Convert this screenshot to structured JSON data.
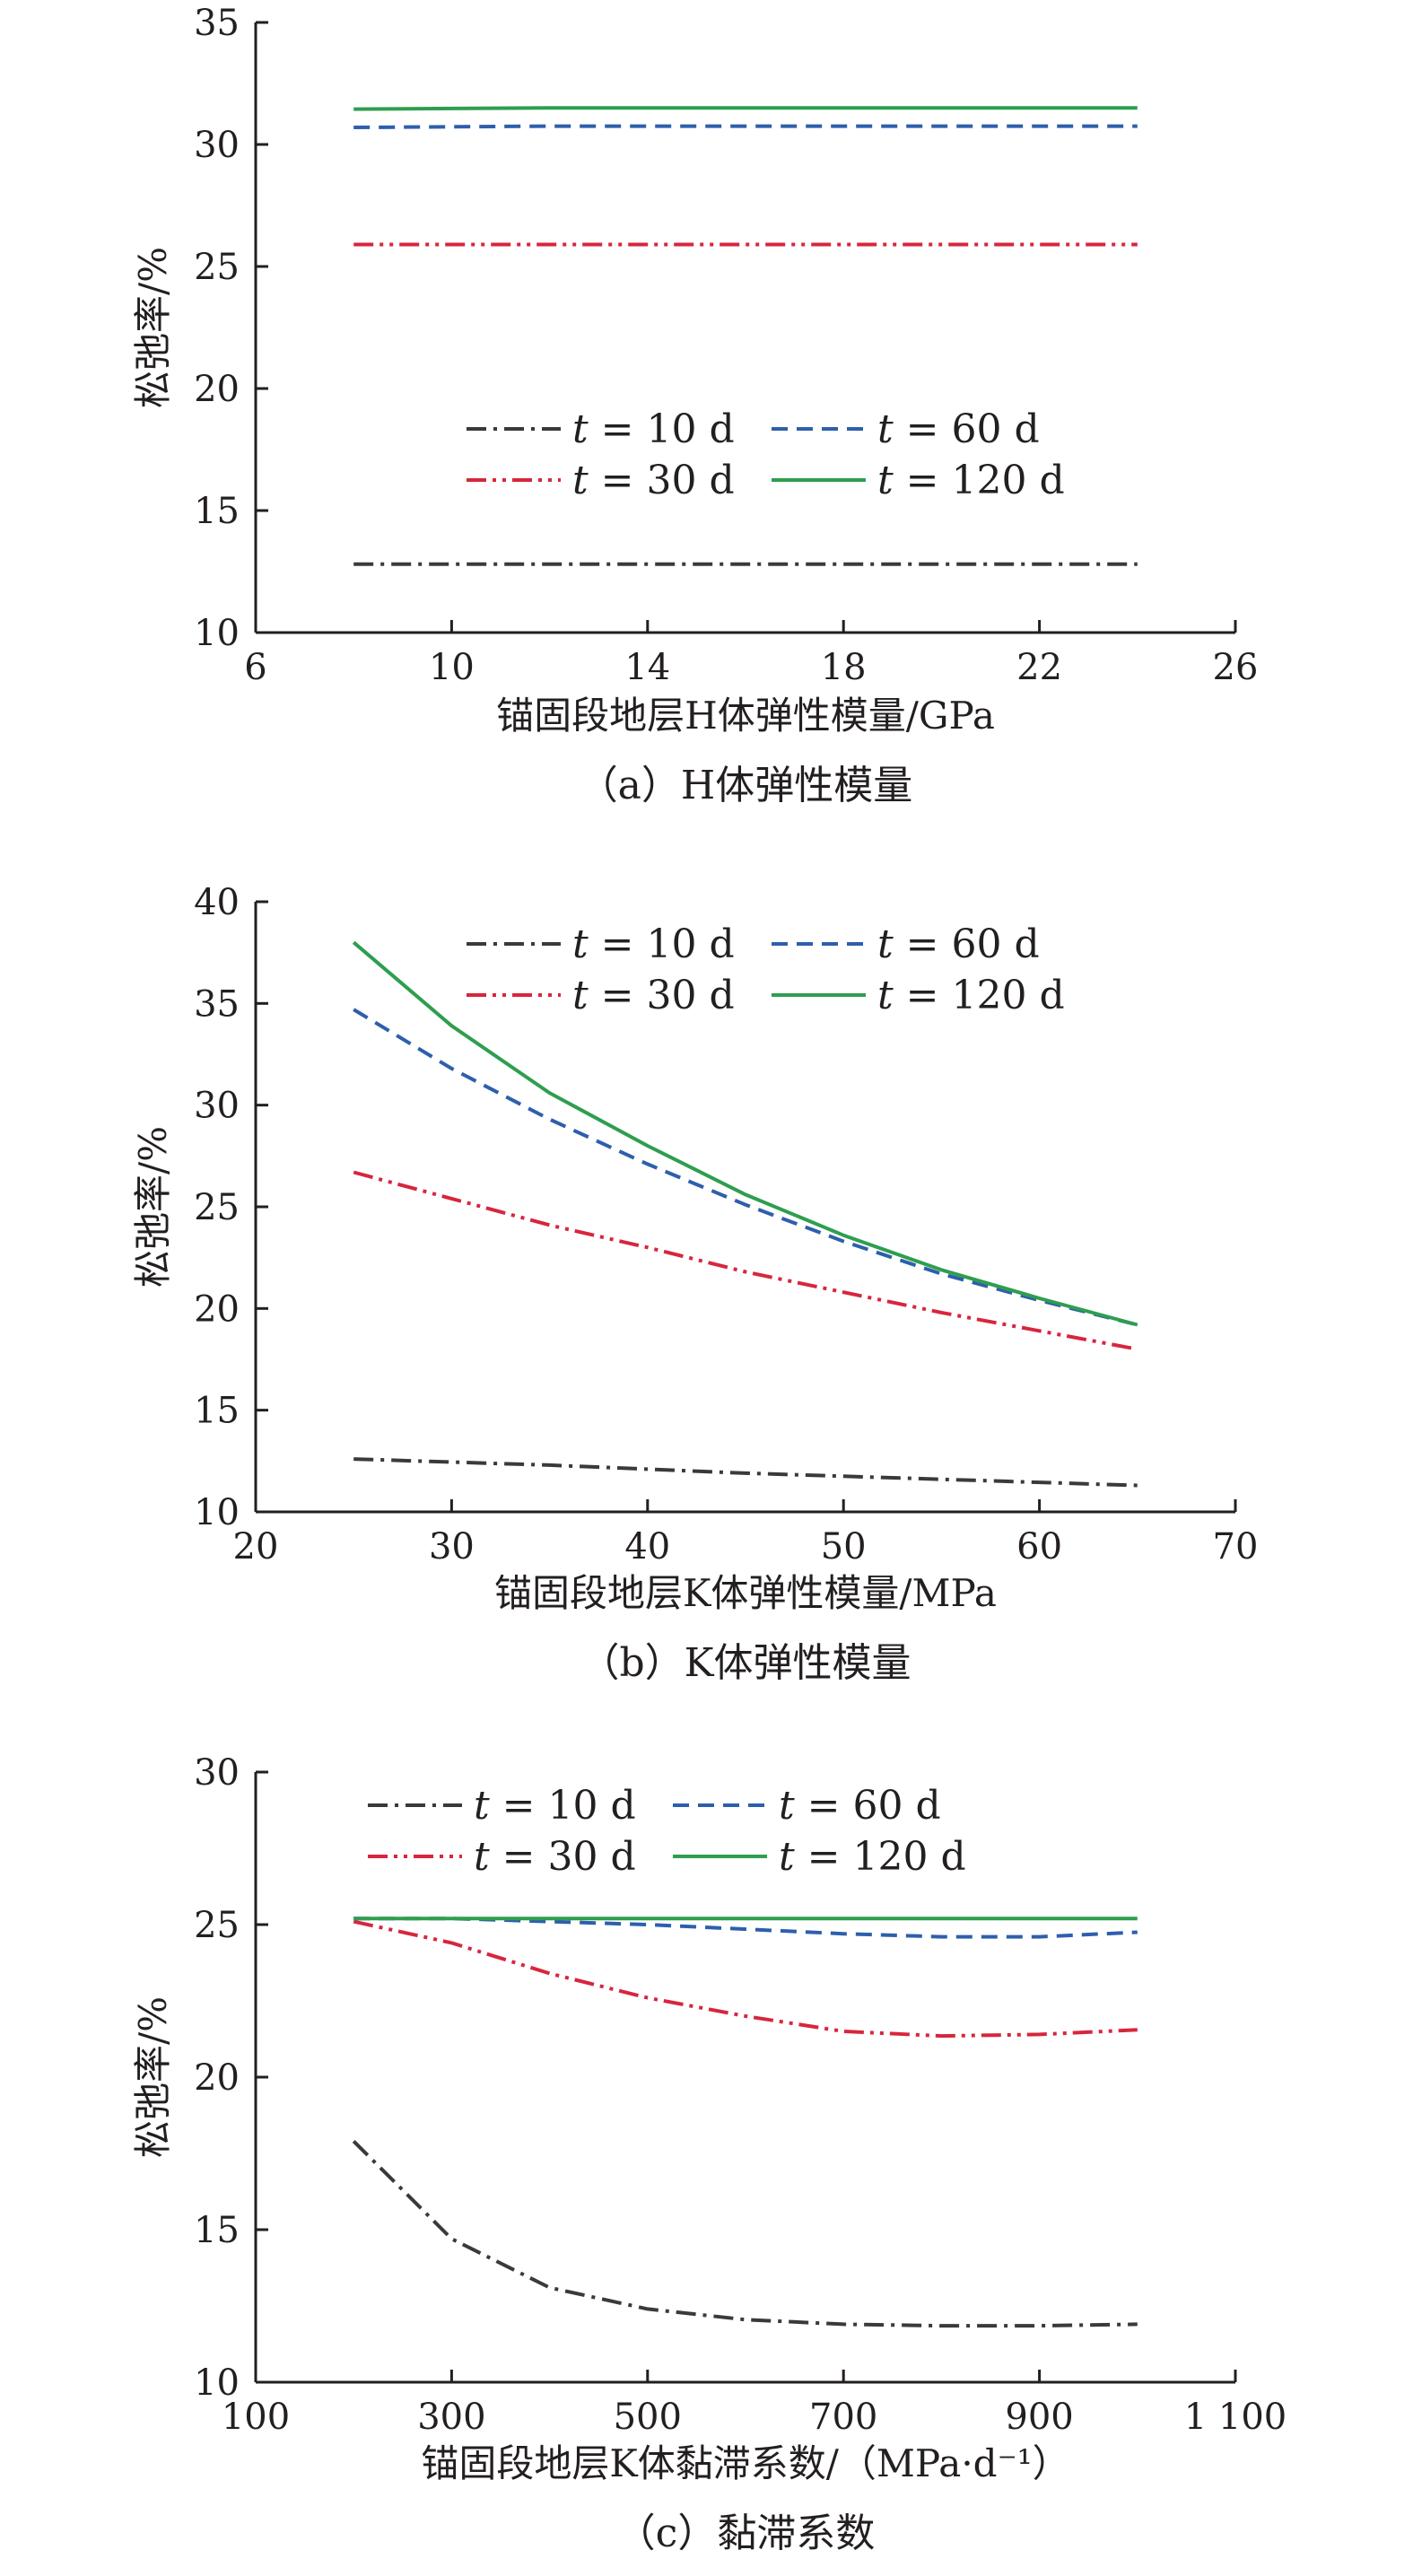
{
  "chart_data": [
    {
      "type": "line",
      "ylabel": "松弛率/%",
      "xlabel": "锚固段地层H体弹性模量/GPa",
      "caption": "（a）H体弹性模量",
      "xlim": [
        6,
        26
      ],
      "ylim": [
        10,
        35
      ],
      "xticks": [
        6,
        10,
        14,
        18,
        22,
        26
      ],
      "yticks": [
        10,
        15,
        20,
        25,
        30,
        35
      ],
      "xtick_labels": [
        "6",
        "10",
        "14",
        "18",
        "22",
        "26"
      ],
      "ytick_labels": [
        "10",
        "15",
        "20",
        "25",
        "30",
        "35"
      ],
      "grid": false,
      "legend_position": "center",
      "series": [
        {
          "name": "t = 10 d",
          "color": "#3a3a3a",
          "dash": "dashdot",
          "x": [
            8,
            24
          ],
          "y": [
            12.8,
            12.8
          ]
        },
        {
          "name": "t = 30 d",
          "color": "#d7263d",
          "dash": "dashdotdot",
          "x": [
            8,
            24
          ],
          "y": [
            25.9,
            25.9
          ]
        },
        {
          "name": "t = 60 d",
          "color": "#2e5fac",
          "dash": "dash",
          "x": [
            8,
            12,
            16,
            20,
            24
          ],
          "y": [
            30.7,
            30.75,
            30.75,
            30.75,
            30.75
          ]
        },
        {
          "name": "t = 120 d",
          "color": "#2e9e4f",
          "dash": "solid",
          "x": [
            8,
            12,
            16,
            20,
            24
          ],
          "y": [
            31.45,
            31.5,
            31.5,
            31.5,
            31.5
          ]
        }
      ]
    },
    {
      "type": "line",
      "ylabel": "松弛率/%",
      "xlabel": "锚固段地层K体弹性模量/MPa",
      "caption": "（b）K体弹性模量",
      "xlim": [
        20,
        70
      ],
      "ylim": [
        10,
        40
      ],
      "xticks": [
        20,
        30,
        40,
        50,
        60,
        70
      ],
      "yticks": [
        10,
        15,
        20,
        25,
        30,
        35,
        40
      ],
      "xtick_labels": [
        "20",
        "30",
        "40",
        "50",
        "60",
        "70"
      ],
      "ytick_labels": [
        "10",
        "15",
        "20",
        "25",
        "30",
        "35",
        "40"
      ],
      "grid": false,
      "legend_position": "top",
      "series": [
        {
          "name": "t = 10 d",
          "color": "#3a3a3a",
          "dash": "dashdot",
          "x": [
            25,
            35,
            45,
            55,
            65
          ],
          "y": [
            12.6,
            12.3,
            11.9,
            11.6,
            11.3
          ]
        },
        {
          "name": "t = 30 d",
          "color": "#d7263d",
          "dash": "dashdotdot",
          "x": [
            25,
            30,
            35,
            40,
            45,
            50,
            55,
            60,
            65
          ],
          "y": [
            26.7,
            25.4,
            24.1,
            23.0,
            21.8,
            20.8,
            19.8,
            18.9,
            18.0
          ]
        },
        {
          "name": "t = 60 d",
          "color": "#2e5fac",
          "dash": "dash",
          "x": [
            25,
            30,
            35,
            40,
            45,
            50,
            55,
            60,
            65
          ],
          "y": [
            34.7,
            31.8,
            29.3,
            27.1,
            25.1,
            23.3,
            21.7,
            20.4,
            19.2
          ]
        },
        {
          "name": "t = 120 d",
          "color": "#2e9e4f",
          "dash": "solid",
          "x": [
            25,
            30,
            35,
            40,
            45,
            50,
            55,
            60,
            65
          ],
          "y": [
            38.0,
            33.9,
            30.6,
            28.0,
            25.6,
            23.6,
            21.9,
            20.5,
            19.2
          ]
        }
      ]
    },
    {
      "type": "line",
      "ylabel": "松弛率/%",
      "xlabel": "锚固段地层K体黏滞系数/（MPa·d⁻¹）",
      "caption": "（c）黏滞系数",
      "xlim": [
        100,
        1100
      ],
      "ylim": [
        10,
        30
      ],
      "xticks": [
        100,
        300,
        500,
        700,
        900,
        1100
      ],
      "yticks": [
        10,
        15,
        20,
        25,
        30
      ],
      "xtick_labels": [
        "100",
        "300",
        "500",
        "700",
        "900",
        "1 100"
      ],
      "ytick_labels": [
        "10",
        "15",
        "20",
        "25",
        "30"
      ],
      "grid": false,
      "legend_position": "top-left",
      "series": [
        {
          "name": "t = 10 d",
          "color": "#3a3a3a",
          "dash": "dashdot",
          "x": [
            200,
            300,
            400,
            500,
            600,
            700,
            800,
            900,
            1000
          ],
          "y": [
            17.9,
            14.7,
            13.1,
            12.4,
            12.05,
            11.9,
            11.85,
            11.85,
            11.9
          ]
        },
        {
          "name": "t = 30 d",
          "color": "#d7263d",
          "dash": "dashdotdot",
          "x": [
            200,
            300,
            400,
            500,
            600,
            700,
            800,
            900,
            1000
          ],
          "y": [
            25.1,
            24.4,
            23.4,
            22.6,
            22.0,
            21.5,
            21.35,
            21.4,
            21.55
          ]
        },
        {
          "name": "t = 60 d",
          "color": "#2e5fac",
          "dash": "dash",
          "x": [
            200,
            300,
            400,
            500,
            600,
            700,
            800,
            900,
            1000
          ],
          "y": [
            25.2,
            25.2,
            25.1,
            25.0,
            24.85,
            24.7,
            24.6,
            24.6,
            24.75
          ]
        },
        {
          "name": "t = 120 d",
          "color": "#2e9e4f",
          "dash": "solid",
          "x": [
            200,
            400,
            600,
            800,
            1000
          ],
          "y": [
            25.2,
            25.2,
            25.2,
            25.2,
            25.2
          ]
        }
      ]
    }
  ]
}
